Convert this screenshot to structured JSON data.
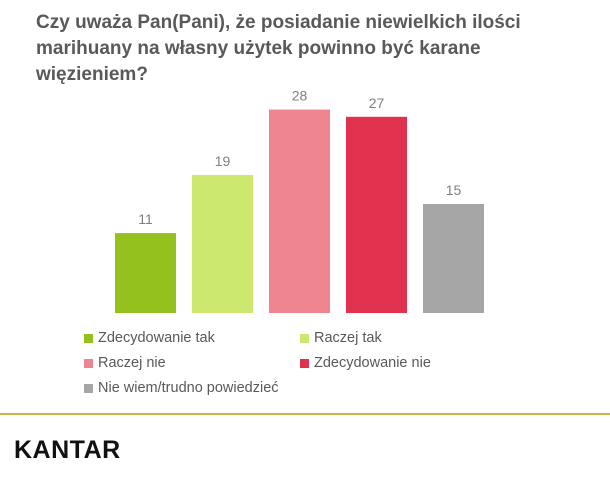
{
  "title": "Czy uważa Pan(Pani), że posiadanie niewielkich ilości marihuany na własny użytek powinno być karane więzieniem?",
  "brand": "KANTAR",
  "chart_data": {
    "type": "bar",
    "title": "Czy uważa Pan(Pani), że posiadanie niewielkich ilości marihuany na własny użytek powinno być karane więzieniem?",
    "categories": [
      "Zdecydowanie tak",
      "Raczej tak",
      "Raczej nie",
      "Zdecydowanie nie",
      "Nie wiem/trudno powiedzieć"
    ],
    "values": [
      11,
      19,
      28,
      27,
      15
    ],
    "colors": [
      "#95c11f",
      "#cde86f",
      "#f08592",
      "#e0314e",
      "#a6a6a6"
    ],
    "ylim": [
      0,
      30
    ],
    "grid": false,
    "legend_position": "bottom",
    "value_labels": true
  }
}
